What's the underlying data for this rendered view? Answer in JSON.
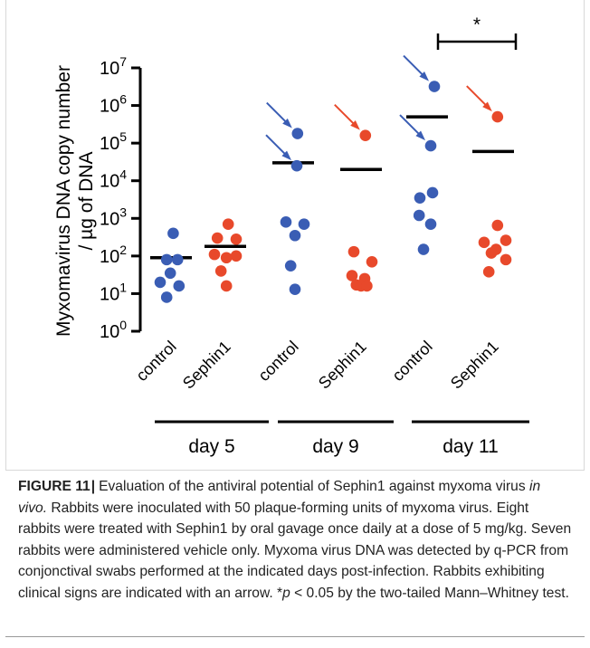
{
  "chart_data": {
    "type": "scatter",
    "y_scale": "log10",
    "ylim": [
      1,
      10000000
    ],
    "ylabel_line1": "Myxomavirus  DNA copy number",
    "ylabel_line2": "/ µg of DNA",
    "ytick_labels": [
      {
        "base": "10",
        "exp": "0"
      },
      {
        "base": "10",
        "exp": "1"
      },
      {
        "base": "10",
        "exp": "2"
      },
      {
        "base": "10",
        "exp": "3"
      },
      {
        "base": "10",
        "exp": "4"
      },
      {
        "base": "10",
        "exp": "5"
      },
      {
        "base": "10",
        "exp": "6"
      },
      {
        "base": "10",
        "exp": "7"
      }
    ],
    "categories": [
      "control",
      "Sephin1",
      "control",
      "Sephin1",
      "control",
      "Sephin1"
    ],
    "groups": [
      "day 5",
      "day 9",
      "day 11"
    ],
    "series_colors": {
      "control": "#3a5db4",
      "Sephin1": "#e8492b"
    },
    "series": [
      {
        "category_index": 0,
        "group": "day 5",
        "color": "#3a5db4",
        "mean": 90,
        "points": [
          {
            "v": 400,
            "jit": 0.06
          },
          {
            "v": 80,
            "jit": -0.12
          },
          {
            "v": 80,
            "jit": 0.18
          },
          {
            "v": 35,
            "jit": -0.02
          },
          {
            "v": 20,
            "jit": -0.3
          },
          {
            "v": 16,
            "jit": 0.22
          },
          {
            "v": 8,
            "jit": -0.12
          }
        ],
        "arrows": []
      },
      {
        "category_index": 1,
        "group": "day 5",
        "color": "#e8492b",
        "mean": 180,
        "points": [
          {
            "v": 700,
            "jit": 0.08
          },
          {
            "v": 300,
            "jit": -0.22
          },
          {
            "v": 280,
            "jit": 0.3
          },
          {
            "v": 110,
            "jit": -0.3
          },
          {
            "v": 90,
            "jit": 0.03
          },
          {
            "v": 100,
            "jit": 0.3
          },
          {
            "v": 40,
            "jit": -0.12
          },
          {
            "v": 16,
            "jit": 0.03
          }
        ],
        "arrows": []
      },
      {
        "category_index": 2,
        "group": "day 9",
        "color": "#3a5db4",
        "mean": 30000,
        "points": [
          {
            "v": 180000,
            "jit": 0.12
          },
          {
            "v": 25000,
            "jit": 0.1
          },
          {
            "v": 800,
            "jit": -0.2
          },
          {
            "v": 700,
            "jit": 0.3
          },
          {
            "v": 350,
            "jit": 0.05
          },
          {
            "v": 55,
            "jit": -0.07
          },
          {
            "v": 13,
            "jit": 0.05
          }
        ],
        "arrows": [
          {
            "target": 180000
          },
          {
            "target": 25000
          }
        ]
      },
      {
        "category_index": 3,
        "group": "day 9",
        "color": "#e8492b",
        "mean": 20000,
        "points": [
          {
            "v": 160000,
            "jit": 0.12
          },
          {
            "v": 130,
            "jit": -0.2
          },
          {
            "v": 70,
            "jit": 0.3
          },
          {
            "v": 30,
            "jit": -0.25
          },
          {
            "v": 25,
            "jit": 0.1
          },
          {
            "v": 17,
            "jit": -0.13
          },
          {
            "v": 16,
            "jit": 0.0
          },
          {
            "v": 16,
            "jit": 0.16
          }
        ],
        "arrows": [
          {
            "target": 160000
          }
        ]
      },
      {
        "category_index": 4,
        "group": "day 11",
        "color": "#3a5db4",
        "mean": 500000,
        "points": [
          {
            "v": 3200000,
            "jit": 0.2
          },
          {
            "v": 85000,
            "jit": 0.1
          },
          {
            "v": 4800,
            "jit": 0.15
          },
          {
            "v": 3500,
            "jit": -0.2
          },
          {
            "v": 1200,
            "jit": -0.22
          },
          {
            "v": 700,
            "jit": 0.1
          },
          {
            "v": 150,
            "jit": -0.1
          }
        ],
        "arrows": [
          {
            "target": 3200000
          },
          {
            "target": 85000
          }
        ]
      },
      {
        "category_index": 5,
        "group": "day 11",
        "color": "#e8492b",
        "mean": 60000,
        "points": [
          {
            "v": 500000,
            "jit": 0.12
          },
          {
            "v": 650,
            "jit": 0.12
          },
          {
            "v": 260,
            "jit": 0.35
          },
          {
            "v": 230,
            "jit": -0.25
          },
          {
            "v": 150,
            "jit": 0.08
          },
          {
            "v": 120,
            "jit": -0.05
          },
          {
            "v": 80,
            "jit": 0.35
          },
          {
            "v": 38,
            "jit": -0.12
          }
        ],
        "arrows": [
          {
            "target": 500000
          }
        ]
      }
    ],
    "significance": {
      "from_category": 4,
      "to_category": 5,
      "label": "*"
    }
  },
  "caption": {
    "label": "FIGURE 11",
    "separator": "|",
    "text": "Evaluation of the antiviral potential of Sephin1 against myxoma virus ",
    "italic": "in vivo.",
    "rest": " Rabbits were inoculated with 50 plaque-forming units of myxoma virus. Eight rabbits were treated with Sephin1 by oral gavage once daily at a dose of 5 mg/kg. Seven rabbits were administered vehicle only. Myxoma virus DNA was detected by q-PCR from conjonctival swabs performed at the indicated days post-infection. Rabbits exhibiting clinical signs are indicated with an arrow. *",
    "p_italic": "p",
    "tail": " < 0.05 by the two-tailed Mann–Whitney test."
  }
}
